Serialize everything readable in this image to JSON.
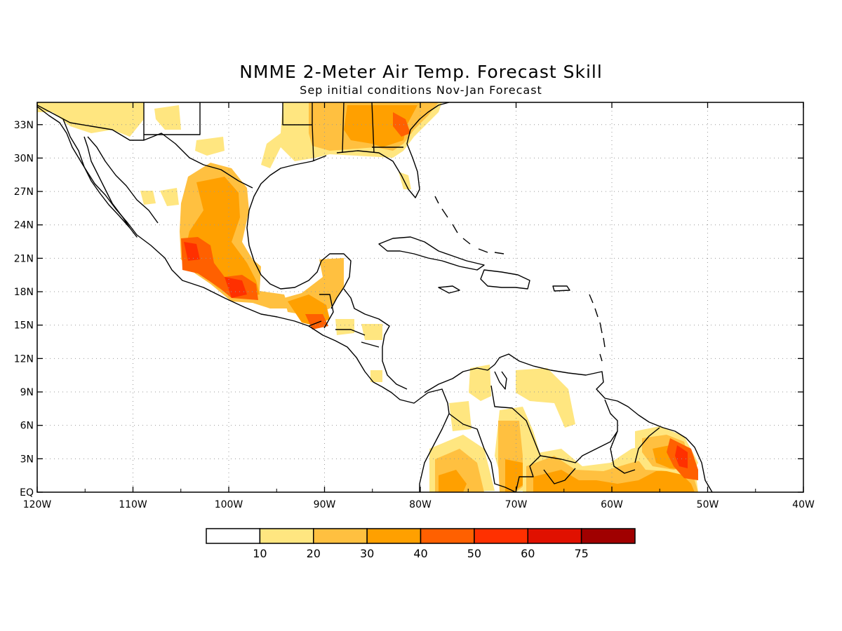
{
  "title": "NMME 2-Meter Air Temp. Forecast Skill",
  "subtitle": "Sep initial conditions  Nov-Jan Forecast",
  "lat_labels": [
    "33N",
    "30N",
    "27N",
    "24N",
    "21N",
    "18N",
    "15N",
    "12N",
    "9N",
    "6N",
    "3N",
    "EQ"
  ],
  "lon_labels": [
    "120W",
    "110W",
    "100W",
    "90W",
    "80W",
    "70W",
    "60W",
    "50W",
    "40W"
  ],
  "colorbar": {
    "bins": [
      "#ffffff",
      "#ffe680",
      "#ffc040",
      "#ffa000",
      "#ff6000",
      "#ff3000",
      "#e01000",
      "#a00000"
    ],
    "labels": [
      "10",
      "20",
      "30",
      "40",
      "50",
      "60",
      "75"
    ]
  },
  "map": {
    "lon_range": [
      -120,
      -40
    ],
    "lat_range": [
      0,
      35
    ],
    "gridlines": "dotted"
  }
}
